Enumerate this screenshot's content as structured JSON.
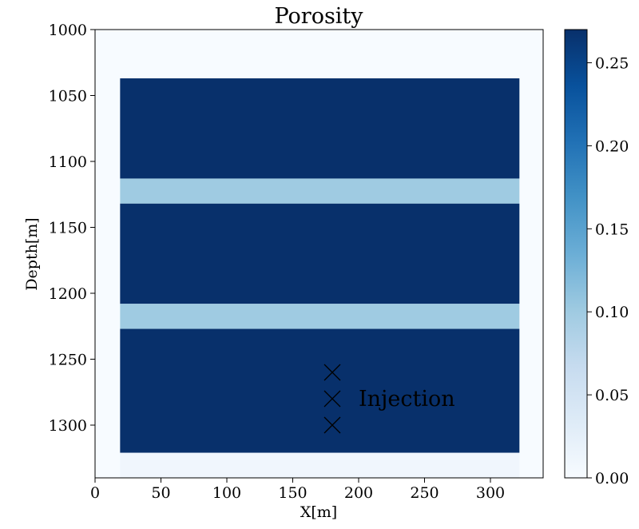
{
  "chart_data": {
    "type": "heatmap",
    "title": "Porosity",
    "xlabel": "X[m]",
    "ylabel": "Depth[m]",
    "xlim": [
      0,
      340
    ],
    "ylim": [
      1340,
      1000
    ],
    "x_ticks": [
      0,
      50,
      100,
      150,
      200,
      250,
      300
    ],
    "y_ticks": [
      1000,
      1050,
      1100,
      1150,
      1200,
      1250,
      1300
    ],
    "background_value": 0.0,
    "regions": [
      {
        "x": [
          19,
          322
        ],
        "depth": [
          1037,
          1113
        ],
        "value": 0.27
      },
      {
        "x": [
          19,
          322
        ],
        "depth": [
          1113,
          1132
        ],
        "value": 0.1
      },
      {
        "x": [
          19,
          322
        ],
        "depth": [
          1132,
          1208
        ],
        "value": 0.27
      },
      {
        "x": [
          19,
          322
        ],
        "depth": [
          1208,
          1227
        ],
        "value": 0.1
      },
      {
        "x": [
          19,
          322
        ],
        "depth": [
          1227,
          1321
        ],
        "value": 0.27
      },
      {
        "x": [
          19,
          322
        ],
        "depth": [
          1321,
          1340
        ],
        "value": 0.01
      }
    ],
    "markers": [
      {
        "x": 180,
        "depth": 1260,
        "symbol": "x"
      },
      {
        "x": 180,
        "depth": 1280,
        "symbol": "x"
      },
      {
        "x": 180,
        "depth": 1300,
        "symbol": "x"
      }
    ],
    "annotation": {
      "text": "Injection",
      "x": 200,
      "depth": 1280
    },
    "colorbar": {
      "colormap": "Blues",
      "range": [
        0.0,
        0.27
      ],
      "ticks": [
        "0.00",
        "0.05",
        "0.10",
        "0.15",
        "0.20",
        "0.25"
      ]
    }
  }
}
